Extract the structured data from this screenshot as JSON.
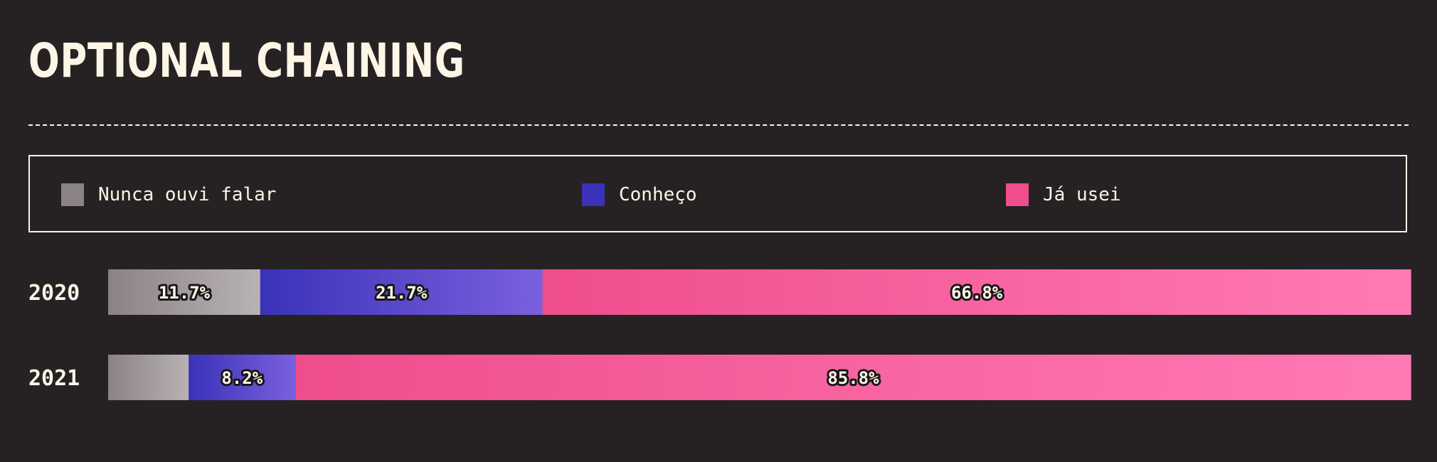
{
  "chart_data": {
    "type": "bar",
    "orientation": "horizontal",
    "stacked": true,
    "title": "OPTIONAL CHAINING",
    "categories": [
      "2020",
      "2021"
    ],
    "xlim": [
      0,
      100
    ],
    "legend_position": "top",
    "series": [
      {
        "name": "Nunca ouvi falar",
        "color": "#8a8287",
        "gradient": [
          "#8a8287",
          "#b9b2b3"
        ],
        "values": [
          11.7,
          6.2
        ],
        "labels": [
          "11.7%",
          ""
        ]
      },
      {
        "name": "Conheço",
        "color": "#3a32b8",
        "gradient": [
          "#3a32b8",
          "#7a60de"
        ],
        "values": [
          21.7,
          8.2
        ],
        "labels": [
          "21.7%",
          "8.2%"
        ]
      },
      {
        "name": "Já usei",
        "color": "#ef4d8c",
        "gradient": [
          "#ef4d8c",
          "#ff7ab5"
        ],
        "values": [
          66.8,
          85.8
        ],
        "labels": [
          "66.8%",
          "85.8%"
        ]
      }
    ]
  },
  "colors": {
    "background": "#262224",
    "text": "#fdf5e6"
  }
}
